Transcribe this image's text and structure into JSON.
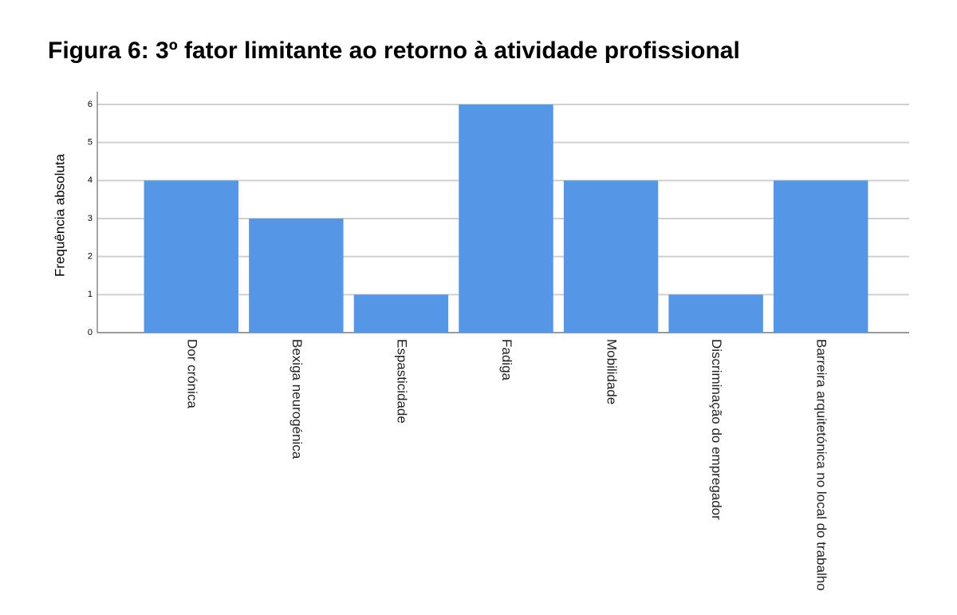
{
  "chart_data": {
    "type": "bar",
    "title": "Figura 6: 3º fator limitante ao retorno à atividade profissional",
    "y_label": "Frequência absoluta",
    "categories": [
      "Dor crónica",
      "Bexiga neurogénica",
      "Espasticidade",
      "Fadiga",
      "Mobilidade",
      "Discriminação do empregador",
      "Barreira arquitetónica no local do trabalho"
    ],
    "values": [
      4,
      3,
      1,
      6,
      4,
      1,
      4
    ],
    "color": "#5596e6",
    "ylim": [
      0,
      6
    ],
    "yticks": [
      0,
      1,
      2,
      3,
      4,
      5,
      6
    ],
    "grid": true
  }
}
